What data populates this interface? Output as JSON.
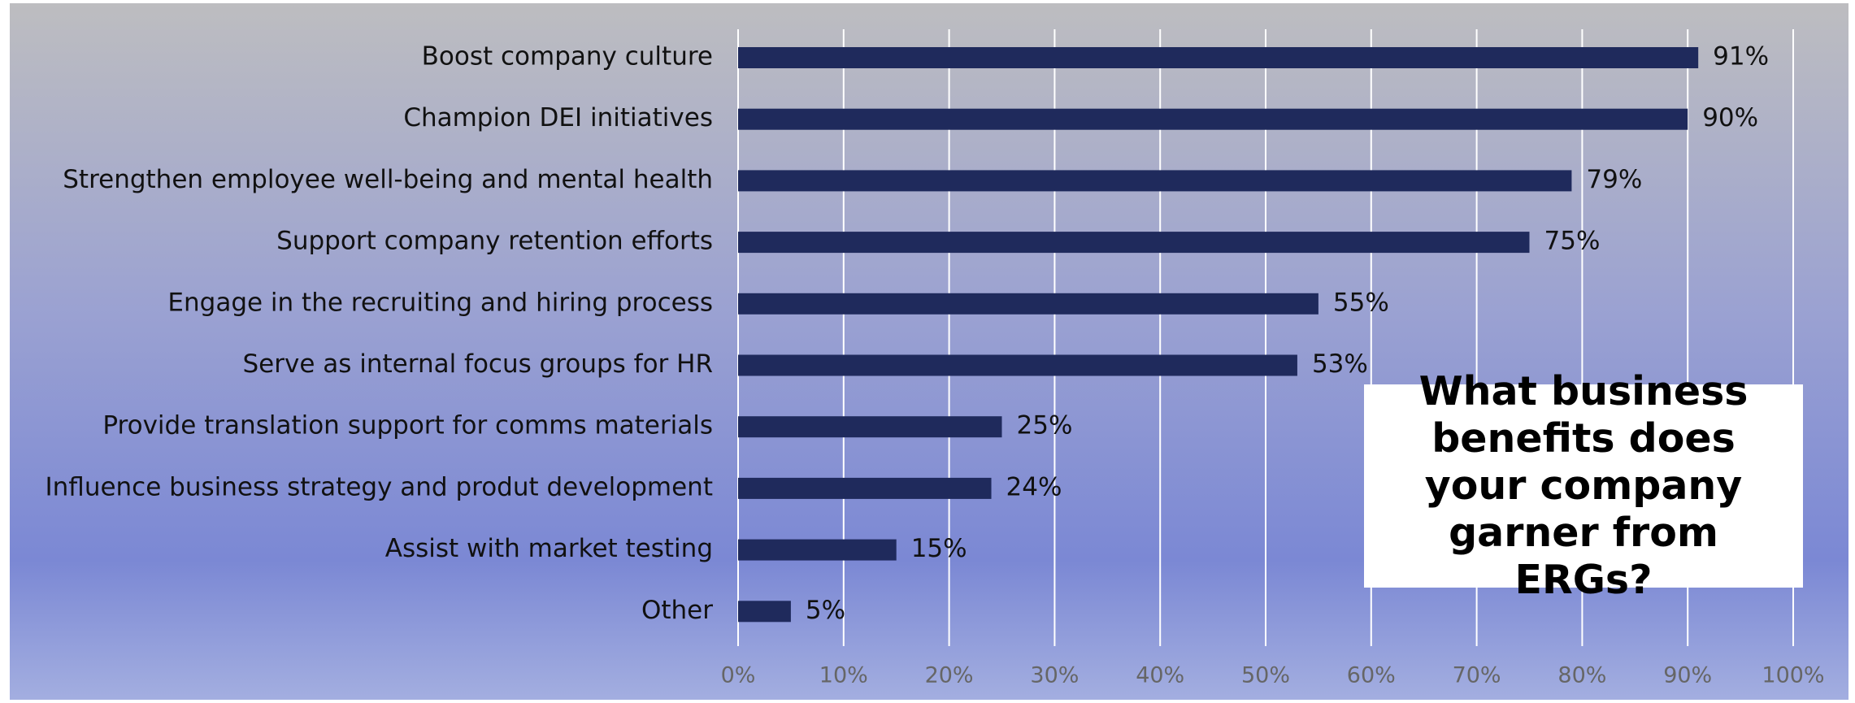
{
  "chart_data": {
    "type": "bar",
    "orientation": "horizontal",
    "title": "What business benefits does your company garner from ERGs?",
    "categories": [
      "Boost company culture",
      "Champion DEI initiatives",
      "Strengthen employee well-being and mental health",
      "Support company retention efforts",
      "Engage in the recruiting and hiring process",
      "Serve as internal focus groups for HR",
      "Provide translation support for comms materials",
      "Influence business strategy and produt development",
      "Assist with market testing",
      "Other"
    ],
    "values": [
      91,
      90,
      79,
      75,
      55,
      53,
      25,
      24,
      15,
      5
    ],
    "value_labels": [
      "91%",
      "90%",
      "79%",
      "75%",
      "55%",
      "53%",
      "25%",
      "24%",
      "15%",
      "5%"
    ],
    "color": "#1f2a5c",
    "xlim": [
      0,
      100
    ],
    "xticks": [
      {
        "value": 0,
        "label": "0%"
      },
      {
        "value": 10,
        "label": "10%"
      },
      {
        "value": 20,
        "label": "20%"
      },
      {
        "value": 30,
        "label": "30%"
      },
      {
        "value": 40,
        "label": "40%"
      },
      {
        "value": 50,
        "label": "50%"
      },
      {
        "value": 60,
        "label": "60%"
      },
      {
        "value": 70,
        "label": "70%"
      },
      {
        "value": 80,
        "label": "80%"
      },
      {
        "value": 90,
        "label": "90%"
      },
      {
        "value": 100,
        "label": "100%"
      }
    ],
    "grid": true
  }
}
